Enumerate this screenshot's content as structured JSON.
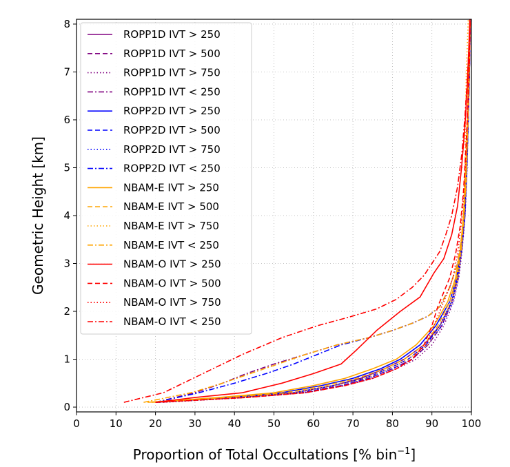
{
  "chart_data": {
    "type": "line",
    "title": "",
    "xlabel": "Proportion of Total Occultations  [% bin",
    "xlabel_sup": "−1",
    "xlabel_end": "]",
    "ylabel": "Geometric Height  [km]",
    "xlim": [
      0,
      100
    ],
    "ylim": [
      -0.1,
      8.1
    ],
    "xticks": [
      "0",
      "10",
      "20",
      "30",
      "40",
      "50",
      "60",
      "70",
      "80",
      "90",
      "100"
    ],
    "yticks": [
      "0",
      "1",
      "2",
      "3",
      "4",
      "5",
      "6",
      "7",
      "8"
    ],
    "grid": true,
    "legend_position": "upper-left",
    "colors": {
      "ROPP1D": "#800080",
      "ROPP2D": "#0000ff",
      "NBAM-E": "#ffa500",
      "NBAM-O": "#ff0000"
    },
    "series": [
      {
        "name": "ROPP1D IVT > 250",
        "group": "ROPP1D",
        "style": "solid",
        "x": [
          20,
          40,
          55,
          65,
          72,
          78,
          83,
          88,
          92,
          95,
          96.5,
          97.5,
          98.3,
          98.8,
          99.2,
          99.5,
          99.7
        ],
        "y": [
          0.1,
          0.2,
          0.3,
          0.45,
          0.6,
          0.8,
          1.0,
          1.3,
          1.7,
          2.2,
          2.7,
          3.3,
          4.0,
          5.0,
          6.0,
          7.0,
          8.1
        ]
      },
      {
        "name": "ROPP1D IVT > 500",
        "group": "ROPP1D",
        "style": "dashed",
        "x": [
          20,
          42,
          57,
          67,
          74,
          80,
          85,
          89,
          92.5,
          95,
          96.5,
          97.5,
          98.3,
          98.8,
          99.2,
          99.5,
          99.7
        ],
        "y": [
          0.1,
          0.2,
          0.3,
          0.45,
          0.6,
          0.8,
          1.0,
          1.3,
          1.7,
          2.2,
          2.7,
          3.3,
          4.0,
          5.0,
          6.0,
          7.0,
          8.1
        ]
      },
      {
        "name": "ROPP1D IVT > 750",
        "group": "ROPP1D",
        "style": "dotted",
        "x": [
          22,
          43,
          58,
          68,
          75,
          81,
          86,
          90,
          93,
          95.5,
          96.8,
          97.7,
          98.4,
          98.9,
          99.2,
          99.5,
          99.7
        ],
        "y": [
          0.1,
          0.2,
          0.3,
          0.45,
          0.6,
          0.8,
          1.0,
          1.3,
          1.7,
          2.2,
          2.7,
          3.3,
          4.0,
          5.0,
          6.0,
          7.0,
          8.1
        ]
      },
      {
        "name": "ROPP1D IVT < 250",
        "group": "ROPP1D",
        "style": "dashdot",
        "x": [
          20,
          30,
          37,
          43,
          50,
          58,
          66,
          74,
          80,
          85,
          89,
          92,
          94.5,
          96.5,
          97.8,
          98.6,
          99.1,
          99.5,
          99.7
        ],
        "y": [
          0.1,
          0.3,
          0.5,
          0.7,
          0.9,
          1.1,
          1.3,
          1.45,
          1.6,
          1.75,
          1.9,
          2.1,
          2.5,
          3.0,
          3.7,
          4.6,
          5.8,
          7.0,
          8.1
        ]
      },
      {
        "name": "ROPP2D IVT > 250",
        "group": "ROPP2D",
        "style": "solid",
        "x": [
          20,
          38,
          52,
          62,
          70,
          77,
          82,
          87,
          91,
          94.5,
          96.3,
          97.4,
          98.2,
          98.8,
          99.2,
          99.5,
          99.7
        ],
        "y": [
          0.1,
          0.2,
          0.3,
          0.45,
          0.6,
          0.8,
          1.0,
          1.3,
          1.7,
          2.2,
          2.7,
          3.3,
          4.0,
          5.0,
          6.0,
          7.0,
          8.1
        ]
      },
      {
        "name": "ROPP2D IVT > 500",
        "group": "ROPP2D",
        "style": "dashed",
        "x": [
          20,
          40,
          55,
          65,
          73,
          79,
          84,
          88.5,
          92,
          95,
          96.5,
          97.5,
          98.3,
          98.8,
          99.2,
          99.5,
          99.7
        ],
        "y": [
          0.1,
          0.2,
          0.3,
          0.45,
          0.6,
          0.8,
          1.0,
          1.3,
          1.7,
          2.2,
          2.7,
          3.3,
          4.0,
          5.0,
          6.0,
          7.0,
          8.1
        ]
      },
      {
        "name": "ROPP2D IVT > 750",
        "group": "ROPP2D",
        "style": "dotted",
        "x": [
          21,
          42,
          57,
          67,
          74,
          80,
          85,
          89,
          92.5,
          95.3,
          96.7,
          97.6,
          98.4,
          98.9,
          99.2,
          99.5,
          99.7
        ],
        "y": [
          0.1,
          0.2,
          0.3,
          0.45,
          0.6,
          0.8,
          1.0,
          1.3,
          1.7,
          2.2,
          2.7,
          3.3,
          4.0,
          5.0,
          6.0,
          7.0,
          8.1
        ]
      },
      {
        "name": "ROPP2D IVT < 250",
        "group": "ROPP2D",
        "style": "dashdot",
        "x": [
          20,
          31,
          40,
          48,
          55,
          61,
          67,
          74,
          80,
          85,
          89,
          92,
          94.5,
          96.5,
          97.8,
          98.6,
          99.1,
          99.5,
          99.7
        ],
        "y": [
          0.1,
          0.3,
          0.5,
          0.7,
          0.9,
          1.1,
          1.3,
          1.45,
          1.6,
          1.75,
          1.9,
          2.1,
          2.5,
          3.0,
          3.7,
          4.6,
          5.8,
          7.0,
          8.1
        ]
      },
      {
        "name": "NBAM-E IVT > 250",
        "group": "NBAM-E",
        "style": "solid",
        "x": [
          18,
          36,
          50,
          60,
          68,
          75,
          81,
          86,
          90.5,
          94,
          96,
          97.2,
          98,
          98.6,
          99,
          99.3,
          99.6
        ],
        "y": [
          0.1,
          0.2,
          0.3,
          0.45,
          0.6,
          0.8,
          1.0,
          1.3,
          1.7,
          2.2,
          2.7,
          3.3,
          4.0,
          5.0,
          6.0,
          7.0,
          8.1
        ]
      },
      {
        "name": "NBAM-E IVT > 500",
        "group": "NBAM-E",
        "style": "dashed",
        "x": [
          19,
          38,
          53,
          63,
          71,
          78,
          83,
          88,
          91.5,
          94.5,
          96.3,
          97.4,
          98.2,
          98.7,
          99.1,
          99.4,
          99.6
        ],
        "y": [
          0.1,
          0.2,
          0.3,
          0.45,
          0.6,
          0.8,
          1.0,
          1.3,
          1.7,
          2.2,
          2.7,
          3.3,
          4.0,
          5.0,
          6.0,
          7.0,
          8.1
        ]
      },
      {
        "name": "NBAM-E IVT > 750",
        "group": "NBAM-E",
        "style": "dotted",
        "x": [
          20,
          40,
          55,
          65,
          73,
          79,
          84,
          89,
          92,
          95,
          96.6,
          97.5,
          98.1,
          98.4,
          98.5,
          98.7,
          99.2
        ],
        "y": [
          0.1,
          0.2,
          0.3,
          0.45,
          0.6,
          0.8,
          1.0,
          1.3,
          1.7,
          2.2,
          2.7,
          3.3,
          4.0,
          5.0,
          6.0,
          7.0,
          8.1
        ]
      },
      {
        "name": "NBAM-E IVT < 250",
        "group": "NBAM-E",
        "style": "dashdot",
        "x": [
          17,
          29,
          37,
          44,
          51,
          58,
          66,
          74,
          80,
          85,
          89,
          92,
          94.5,
          96.5,
          97.8,
          98.6,
          99.1,
          99.5,
          99.7
        ],
        "y": [
          0.1,
          0.3,
          0.5,
          0.7,
          0.9,
          1.1,
          1.3,
          1.45,
          1.6,
          1.75,
          1.9,
          2.1,
          2.5,
          3.0,
          3.7,
          4.6,
          5.8,
          7.0,
          8.1
        ]
      },
      {
        "name": "NBAM-O IVT > 250",
        "group": "NBAM-O",
        "style": "solid",
        "x": [
          20,
          30,
          42,
          52,
          60,
          67,
          71,
          76,
          82,
          87,
          90.5,
          93,
          95,
          96.5,
          97.5,
          98.3,
          98.9,
          99.3,
          99.6
        ],
        "y": [
          0.1,
          0.2,
          0.3,
          0.5,
          0.7,
          0.9,
          1.2,
          1.6,
          2.0,
          2.3,
          2.8,
          3.1,
          3.6,
          4.2,
          5.0,
          5.8,
          6.6,
          7.4,
          8.1
        ]
      },
      {
        "name": "NBAM-O IVT > 500",
        "group": "NBAM-O",
        "style": "dashed",
        "x": [
          20,
          43,
          58,
          68,
          75,
          81,
          85,
          88,
          90,
          91.5,
          93,
          94.5,
          96,
          97.2,
          98,
          98.6,
          99.1,
          99.5,
          99.7
        ],
        "y": [
          0.1,
          0.2,
          0.3,
          0.45,
          0.6,
          0.8,
          1.0,
          1.3,
          1.7,
          2.1,
          2.4,
          2.7,
          3.2,
          3.8,
          4.5,
          5.4,
          6.3,
          7.2,
          8.1
        ]
      },
      {
        "name": "NBAM-O IVT > 750",
        "group": "NBAM-O",
        "style": "dotted",
        "x": [
          21,
          43,
          58,
          68,
          75,
          81,
          85,
          88.5,
          90.5,
          92.5,
          94,
          95.3,
          96.5,
          97.4,
          98.1,
          98.7,
          99.1,
          99.5,
          99.7
        ],
        "y": [
          0.1,
          0.2,
          0.3,
          0.45,
          0.6,
          0.8,
          1.0,
          1.3,
          1.7,
          2.1,
          2.4,
          2.7,
          3.2,
          3.8,
          4.5,
          5.4,
          6.3,
          7.2,
          8.1
        ]
      },
      {
        "name": "NBAM-O IVT < 250",
        "group": "NBAM-O",
        "style": "dashdot",
        "x": [
          12,
          22,
          32,
          42,
          52,
          61,
          69,
          76,
          81,
          85,
          88,
          90,
          92,
          93.5,
          95,
          96.5,
          97.6,
          98.4,
          99,
          99.4,
          99.7
        ],
        "y": [
          0.1,
          0.3,
          0.7,
          1.1,
          1.45,
          1.7,
          1.88,
          2.05,
          2.25,
          2.5,
          2.75,
          3.0,
          3.25,
          3.6,
          4.0,
          4.6,
          5.3,
          6.1,
          6.9,
          7.6,
          8.1
        ]
      }
    ]
  }
}
